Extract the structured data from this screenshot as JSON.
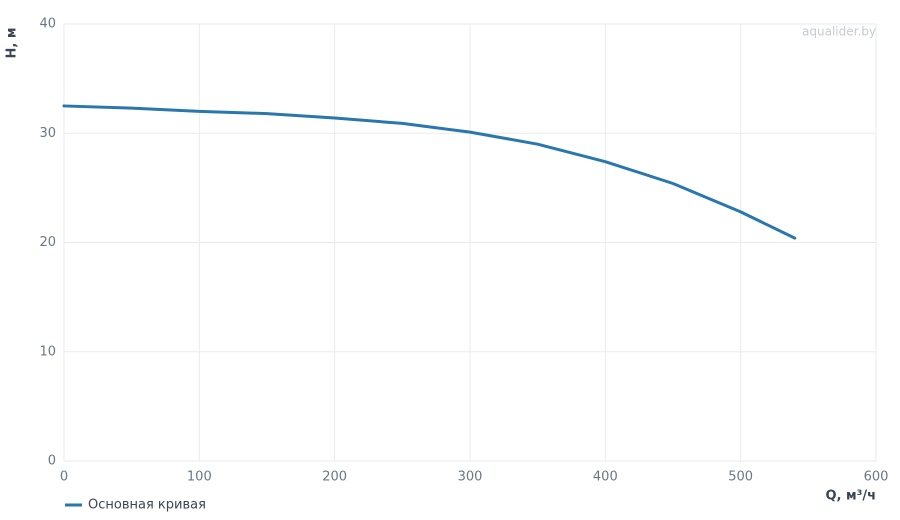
{
  "chart_data": {
    "type": "line",
    "watermark": "aqualider.by",
    "x_label": "Q, м³/ч",
    "y_label": "H, м",
    "x": [
      0,
      50,
      100,
      150,
      200,
      250,
      300,
      350,
      400,
      450,
      500,
      540
    ],
    "series": [
      {
        "name": "Основная кривая",
        "color": "#2a77ae",
        "values": [
          32.5,
          32.3,
          32.0,
          31.8,
          31.4,
          30.9,
          30.1,
          29.0,
          27.4,
          25.4,
          22.8,
          20.4
        ]
      }
    ],
    "xlim": [
      0,
      600
    ],
    "xticks": [
      0,
      100,
      200,
      300,
      400,
      500,
      600
    ],
    "ylim": [
      0,
      40
    ],
    "yticks": [
      0,
      10,
      20,
      30,
      40
    ],
    "grid": true
  }
}
